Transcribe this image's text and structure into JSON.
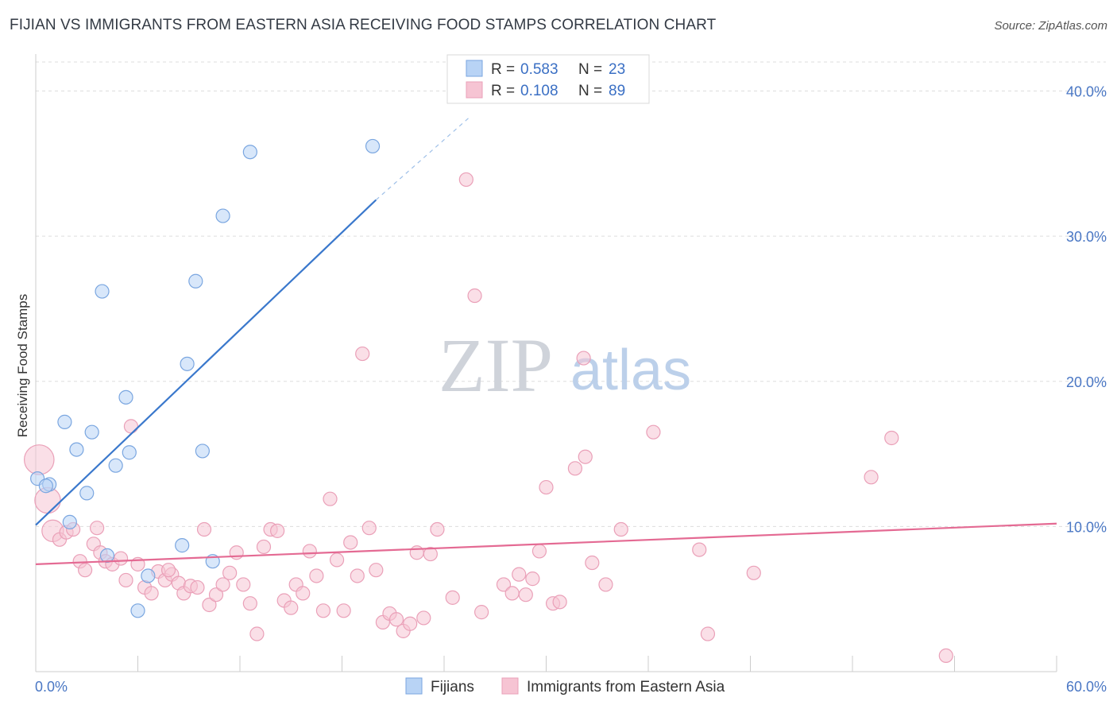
{
  "title": "FIJIAN VS IMMIGRANTS FROM EASTERN ASIA RECEIVING FOOD STAMPS CORRELATION CHART",
  "source": "Source: ZipAtlas.com",
  "watermark": {
    "part1": "ZIP",
    "part2": "atlas"
  },
  "colors": {
    "blue_fill": "#b8d3f5",
    "blue_stroke": "#7aa6e0",
    "blue_line": "#3a78cc",
    "pink_fill": "#f6c4d3",
    "pink_stroke": "#eaa0b8",
    "pink_line": "#e46a93",
    "axis_text": "#4a77c4",
    "grid": "#dddddd"
  },
  "stats": [
    {
      "r_label": "R =",
      "r_value": "0.583",
      "n_label": "N =",
      "n_value": "23"
    },
    {
      "r_label": "R =",
      "r_value": "0.108",
      "n_label": "N =",
      "n_value": "89"
    }
  ],
  "chart_data": {
    "type": "scatter",
    "title": "FIJIAN VS IMMIGRANTS FROM EASTERN ASIA RECEIVING FOOD STAMPS CORRELATION CHART",
    "xlabel": "",
    "ylabel": "Receiving Food Stamps",
    "xlim": [
      0,
      60
    ],
    "ylim": [
      0,
      42
    ],
    "x_tick_labels": [
      "0.0%",
      "60.0%"
    ],
    "y_ticks": [
      10,
      20,
      30,
      40
    ],
    "y_tick_labels": [
      "10.0%",
      "20.0%",
      "30.0%",
      "40.0%"
    ],
    "grid": true,
    "legend_position": "bottom-center",
    "series": [
      {
        "name": "Fijians",
        "color": "#b8d3f5",
        "trend": {
          "x0": 0,
          "y0": 10.1,
          "x1": 20,
          "y1": 32.5,
          "dashed_to_x": 25.5,
          "dashed_to_y": 38.2
        },
        "points": [
          {
            "x": 0.1,
            "y": 13.3,
            "s": 1
          },
          {
            "x": 0.8,
            "y": 12.9,
            "s": 1
          },
          {
            "x": 1.7,
            "y": 17.2,
            "s": 1
          },
          {
            "x": 2.0,
            "y": 10.3,
            "s": 1
          },
          {
            "x": 2.4,
            "y": 15.3,
            "s": 1
          },
          {
            "x": 3.0,
            "y": 12.3,
            "s": 1
          },
          {
            "x": 3.3,
            "y": 16.5,
            "s": 1
          },
          {
            "x": 3.9,
            "y": 26.2,
            "s": 1
          },
          {
            "x": 4.2,
            "y": 8.0,
            "s": 1
          },
          {
            "x": 4.7,
            "y": 14.2,
            "s": 1
          },
          {
            "x": 5.3,
            "y": 18.9,
            "s": 1
          },
          {
            "x": 5.5,
            "y": 15.1,
            "s": 1
          },
          {
            "x": 6.0,
            "y": 4.2,
            "s": 1
          },
          {
            "x": 6.6,
            "y": 6.6,
            "s": 1
          },
          {
            "x": 8.6,
            "y": 8.7,
            "s": 1
          },
          {
            "x": 8.9,
            "y": 21.2,
            "s": 1
          },
          {
            "x": 9.4,
            "y": 26.9,
            "s": 1
          },
          {
            "x": 9.8,
            "y": 15.2,
            "s": 1
          },
          {
            "x": 10.4,
            "y": 7.6,
            "s": 1
          },
          {
            "x": 11.0,
            "y": 31.4,
            "s": 1
          },
          {
            "x": 12.6,
            "y": 35.8,
            "s": 1
          },
          {
            "x": 19.8,
            "y": 36.2,
            "s": 1
          },
          {
            "x": 0.6,
            "y": 12.8,
            "s": 1
          }
        ]
      },
      {
        "name": "Immigrants from Eastern Asia",
        "color": "#f6c4d3",
        "trend": {
          "x0": 0,
          "y0": 7.4,
          "x1": 60,
          "y1": 10.2
        },
        "points": [
          {
            "x": 0.2,
            "y": 14.6,
            "s": 2.2
          },
          {
            "x": 0.7,
            "y": 11.8,
            "s": 1.9
          },
          {
            "x": 1.0,
            "y": 9.7,
            "s": 1.6
          },
          {
            "x": 1.4,
            "y": 9.1,
            "s": 1
          },
          {
            "x": 1.8,
            "y": 9.6,
            "s": 1
          },
          {
            "x": 2.2,
            "y": 9.8,
            "s": 1
          },
          {
            "x": 2.6,
            "y": 7.6,
            "s": 1
          },
          {
            "x": 2.9,
            "y": 7.0,
            "s": 1
          },
          {
            "x": 3.4,
            "y": 8.8,
            "s": 1
          },
          {
            "x": 3.8,
            "y": 8.2,
            "s": 1
          },
          {
            "x": 4.1,
            "y": 7.6,
            "s": 1
          },
          {
            "x": 4.5,
            "y": 7.4,
            "s": 1
          },
          {
            "x": 5.0,
            "y": 7.8,
            "s": 1
          },
          {
            "x": 5.3,
            "y": 6.3,
            "s": 1
          },
          {
            "x": 5.6,
            "y": 16.9,
            "s": 1
          },
          {
            "x": 6.0,
            "y": 7.4,
            "s": 1
          },
          {
            "x": 6.4,
            "y": 5.8,
            "s": 1
          },
          {
            "x": 6.8,
            "y": 5.4,
            "s": 1
          },
          {
            "x": 7.2,
            "y": 6.9,
            "s": 1
          },
          {
            "x": 7.6,
            "y": 6.3,
            "s": 1
          },
          {
            "x": 8.0,
            "y": 6.7,
            "s": 1
          },
          {
            "x": 8.4,
            "y": 6.1,
            "s": 1
          },
          {
            "x": 8.7,
            "y": 5.4,
            "s": 1
          },
          {
            "x": 9.1,
            "y": 5.9,
            "s": 1
          },
          {
            "x": 9.5,
            "y": 5.8,
            "s": 1
          },
          {
            "x": 9.9,
            "y": 9.8,
            "s": 1
          },
          {
            "x": 10.2,
            "y": 4.6,
            "s": 1
          },
          {
            "x": 10.6,
            "y": 5.3,
            "s": 1
          },
          {
            "x": 11.0,
            "y": 6.0,
            "s": 1
          },
          {
            "x": 11.4,
            "y": 6.8,
            "s": 1
          },
          {
            "x": 11.8,
            "y": 8.2,
            "s": 1
          },
          {
            "x": 12.2,
            "y": 6.0,
            "s": 1
          },
          {
            "x": 12.6,
            "y": 4.7,
            "s": 1
          },
          {
            "x": 13.0,
            "y": 2.6,
            "s": 1
          },
          {
            "x": 13.4,
            "y": 8.6,
            "s": 1
          },
          {
            "x": 13.8,
            "y": 9.8,
            "s": 1
          },
          {
            "x": 14.2,
            "y": 9.7,
            "s": 1
          },
          {
            "x": 14.6,
            "y": 4.9,
            "s": 1
          },
          {
            "x": 15.0,
            "y": 4.4,
            "s": 1
          },
          {
            "x": 15.3,
            "y": 6.0,
            "s": 1
          },
          {
            "x": 15.7,
            "y": 5.4,
            "s": 1
          },
          {
            "x": 16.1,
            "y": 8.3,
            "s": 1
          },
          {
            "x": 16.5,
            "y": 6.6,
            "s": 1
          },
          {
            "x": 16.9,
            "y": 4.2,
            "s": 1
          },
          {
            "x": 17.3,
            "y": 11.9,
            "s": 1
          },
          {
            "x": 17.7,
            "y": 7.7,
            "s": 1
          },
          {
            "x": 18.1,
            "y": 4.2,
            "s": 1
          },
          {
            "x": 18.5,
            "y": 8.9,
            "s": 1
          },
          {
            "x": 18.9,
            "y": 6.6,
            "s": 1
          },
          {
            "x": 19.2,
            "y": 21.9,
            "s": 1
          },
          {
            "x": 19.6,
            "y": 9.9,
            "s": 1
          },
          {
            "x": 20.0,
            "y": 7.0,
            "s": 1
          },
          {
            "x": 20.4,
            "y": 3.4,
            "s": 1
          },
          {
            "x": 20.8,
            "y": 4.0,
            "s": 1
          },
          {
            "x": 21.2,
            "y": 3.6,
            "s": 1
          },
          {
            "x": 21.6,
            "y": 2.8,
            "s": 1
          },
          {
            "x": 22.0,
            "y": 3.3,
            "s": 1
          },
          {
            "x": 22.4,
            "y": 8.2,
            "s": 1
          },
          {
            "x": 22.8,
            "y": 3.7,
            "s": 1
          },
          {
            "x": 23.2,
            "y": 8.1,
            "s": 1
          },
          {
            "x": 23.6,
            "y": 9.8,
            "s": 1
          },
          {
            "x": 24.5,
            "y": 5.1,
            "s": 1
          },
          {
            "x": 25.3,
            "y": 33.9,
            "s": 1
          },
          {
            "x": 25.8,
            "y": 25.9,
            "s": 1
          },
          {
            "x": 26.2,
            "y": 4.1,
            "s": 1
          },
          {
            "x": 27.5,
            "y": 6.0,
            "s": 1
          },
          {
            "x": 28.0,
            "y": 5.4,
            "s": 1
          },
          {
            "x": 28.4,
            "y": 6.7,
            "s": 1
          },
          {
            "x": 28.8,
            "y": 5.3,
            "s": 1
          },
          {
            "x": 29.2,
            "y": 6.4,
            "s": 1
          },
          {
            "x": 29.6,
            "y": 8.3,
            "s": 1
          },
          {
            "x": 30.0,
            "y": 12.7,
            "s": 1
          },
          {
            "x": 30.4,
            "y": 4.7,
            "s": 1
          },
          {
            "x": 30.8,
            "y": 4.8,
            "s": 1
          },
          {
            "x": 31.7,
            "y": 14.0,
            "s": 1
          },
          {
            "x": 32.3,
            "y": 14.8,
            "s": 1
          },
          {
            "x": 32.7,
            "y": 7.5,
            "s": 1
          },
          {
            "x": 32.2,
            "y": 21.6,
            "s": 1
          },
          {
            "x": 33.5,
            "y": 6.0,
            "s": 1
          },
          {
            "x": 34.4,
            "y": 9.8,
            "s": 1
          },
          {
            "x": 36.3,
            "y": 16.5,
            "s": 1
          },
          {
            "x": 39.0,
            "y": 8.4,
            "s": 1
          },
          {
            "x": 39.5,
            "y": 2.6,
            "s": 1
          },
          {
            "x": 42.2,
            "y": 6.8,
            "s": 1
          },
          {
            "x": 49.1,
            "y": 13.4,
            "s": 1
          },
          {
            "x": 50.3,
            "y": 16.1,
            "s": 1
          },
          {
            "x": 53.5,
            "y": 1.1,
            "s": 1
          },
          {
            "x": 3.6,
            "y": 9.9,
            "s": 1
          },
          {
            "x": 7.8,
            "y": 7.0,
            "s": 1
          }
        ]
      }
    ]
  }
}
